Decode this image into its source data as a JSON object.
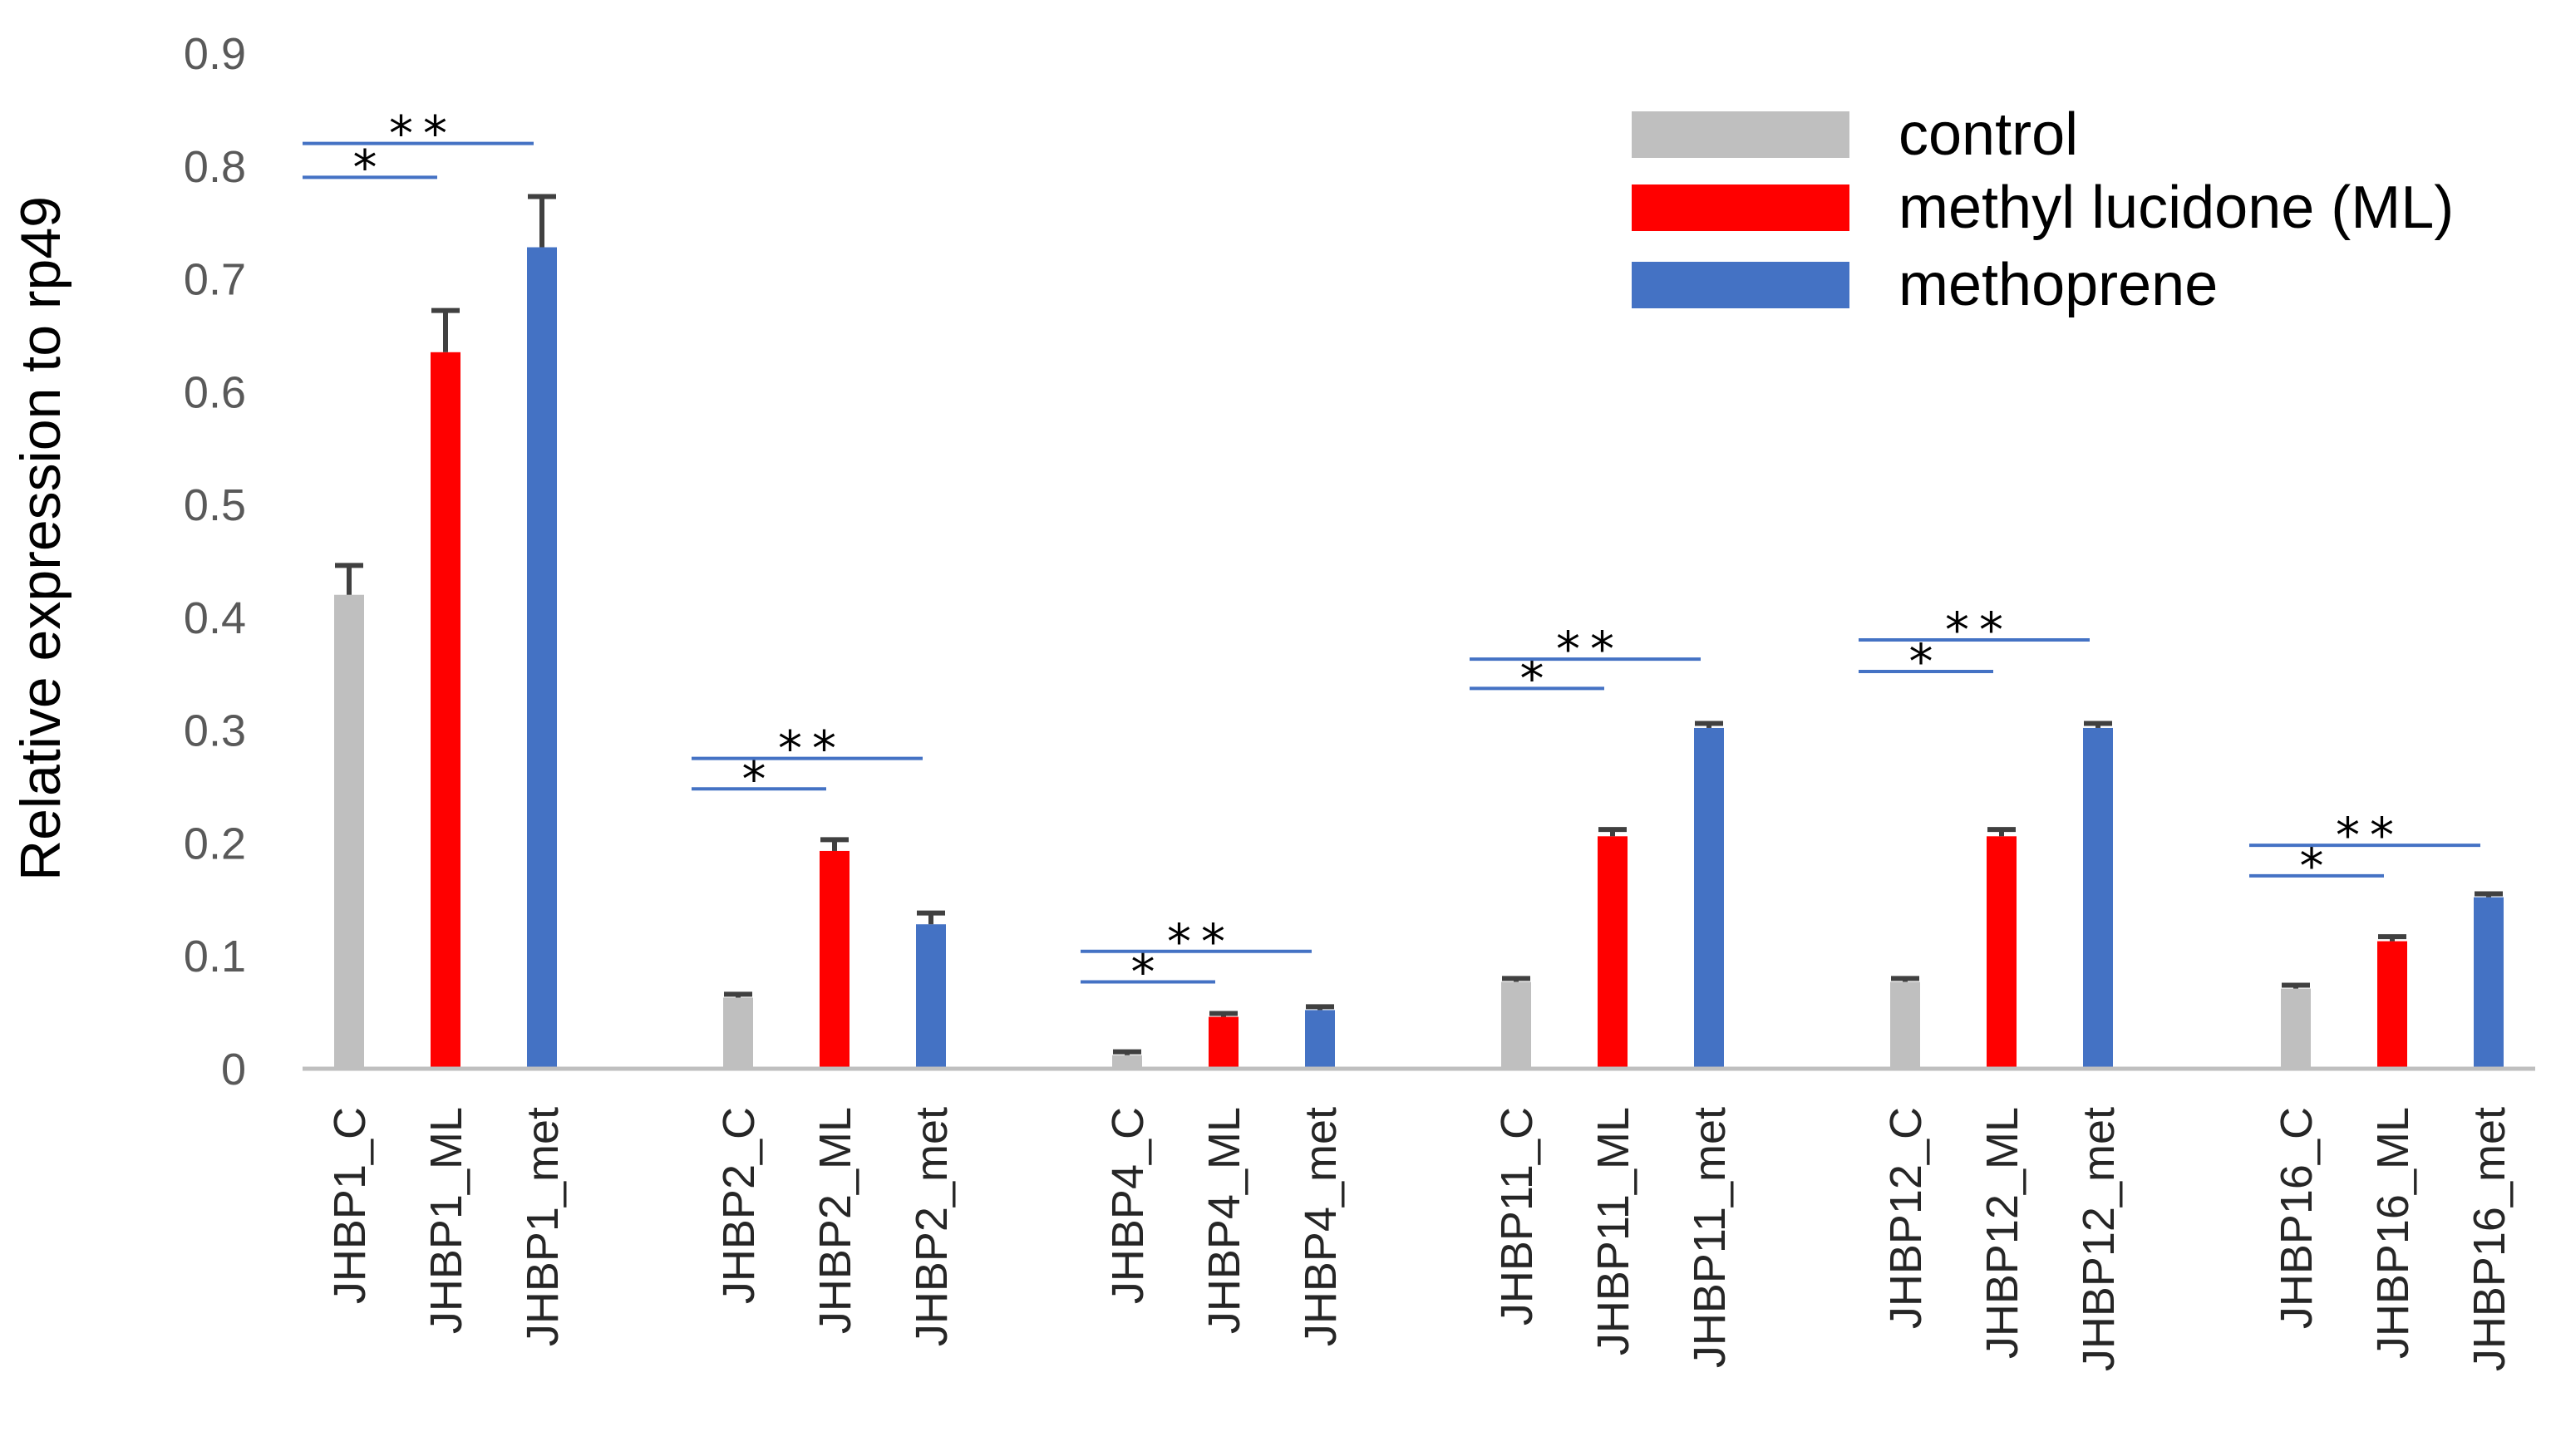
{
  "chart_data": {
    "type": "bar",
    "title": "",
    "xlabel": "",
    "ylabel": "Relative expression to rp49",
    "ylim": [
      0,
      0.9
    ],
    "yticks": [
      "0",
      "0.1",
      "0.2",
      "0.3",
      "0.4",
      "0.5",
      "0.6",
      "0.7",
      "0.8",
      "0.9"
    ],
    "grid": false,
    "legend_position": "top-right",
    "series": [
      {
        "name": "control",
        "color": "#bfbfbf"
      },
      {
        "name": "methyl lucidone (ML)",
        "color": "#ff0000"
      },
      {
        "name": "methoprene",
        "color": "#4472c4"
      }
    ],
    "groups": [
      {
        "name": "JHBP1",
        "bars": [
          {
            "label": "JHBP1_C",
            "series": 0,
            "value": 0.42,
            "error": 0.026
          },
          {
            "label": "JHBP1_ML",
            "series": 1,
            "value": 0.635,
            "error": 0.037
          },
          {
            "label": "JHBP1_met",
            "series": 2,
            "value": 0.728,
            "error": 0.045
          }
        ],
        "significance": [
          {
            "text": "*",
            "y": 0.79,
            "from": 0,
            "to": 1
          },
          {
            "text": "**",
            "y": 0.82,
            "from": 0,
            "to": 2
          }
        ]
      },
      {
        "name": "JHBP2",
        "bars": [
          {
            "label": "JHBP2_C",
            "series": 0,
            "value": 0.063,
            "error": 0.003
          },
          {
            "label": "JHBP2_ML",
            "series": 1,
            "value": 0.193,
            "error": 0.01
          },
          {
            "label": "JHBP2_met",
            "series": 2,
            "value": 0.128,
            "error": 0.01
          }
        ],
        "significance": [
          {
            "text": "*",
            "y": 0.248,
            "from": 0,
            "to": 1
          },
          {
            "text": "**",
            "y": 0.275,
            "from": 0,
            "to": 2
          }
        ]
      },
      {
        "name": "JHBP4",
        "bars": [
          {
            "label": "JHBP4_C",
            "series": 0,
            "value": 0.012,
            "error": 0.003
          },
          {
            "label": "JHBP4_ML",
            "series": 1,
            "value": 0.046,
            "error": 0.003
          },
          {
            "label": "JHBP4_met",
            "series": 2,
            "value": 0.052,
            "error": 0.003
          }
        ],
        "significance": [
          {
            "text": "*",
            "y": 0.077,
            "from": 0,
            "to": 1
          },
          {
            "text": "**",
            "y": 0.104,
            "from": 0,
            "to": 2
          }
        ]
      },
      {
        "name": "JHBP11",
        "bars": [
          {
            "label": "JHBP11_C",
            "series": 0,
            "value": 0.077,
            "error": 0.003
          },
          {
            "label": "JHBP11_ML",
            "series": 1,
            "value": 0.206,
            "error": 0.006
          },
          {
            "label": "JHBP11_met",
            "series": 2,
            "value": 0.302,
            "error": 0.004
          }
        ],
        "significance": [
          {
            "text": "*",
            "y": 0.337,
            "from": 0,
            "to": 1
          },
          {
            "text": "**",
            "y": 0.363,
            "from": 0,
            "to": 2
          }
        ]
      },
      {
        "name": "JHBP12",
        "bars": [
          {
            "label": "JHBP12_C",
            "series": 0,
            "value": 0.077,
            "error": 0.003
          },
          {
            "label": "JHBP12_ML",
            "series": 1,
            "value": 0.206,
            "error": 0.006
          },
          {
            "label": "JHBP12_met",
            "series": 2,
            "value": 0.302,
            "error": 0.004
          }
        ],
        "significance": [
          {
            "text": "*",
            "y": 0.352,
            "from": 0,
            "to": 1
          },
          {
            "text": "**",
            "y": 0.38,
            "from": 0,
            "to": 2
          }
        ]
      },
      {
        "name": "JHBP16",
        "bars": [
          {
            "label": "JHBP16_C",
            "series": 0,
            "value": 0.071,
            "error": 0.003
          },
          {
            "label": "JHBP16_ML",
            "series": 1,
            "value": 0.113,
            "error": 0.004
          },
          {
            "label": "JHBP16_met",
            "series": 2,
            "value": 0.152,
            "error": 0.003
          }
        ],
        "significance": [
          {
            "text": "*",
            "y": 0.171,
            "from": 0,
            "to": 1
          },
          {
            "text": "**",
            "y": 0.198,
            "from": 0,
            "to": 2
          }
        ]
      }
    ],
    "error_bar_color": "#404040",
    "significance_line_color": "#4472c4",
    "axis_color": "#bfbfbf"
  }
}
